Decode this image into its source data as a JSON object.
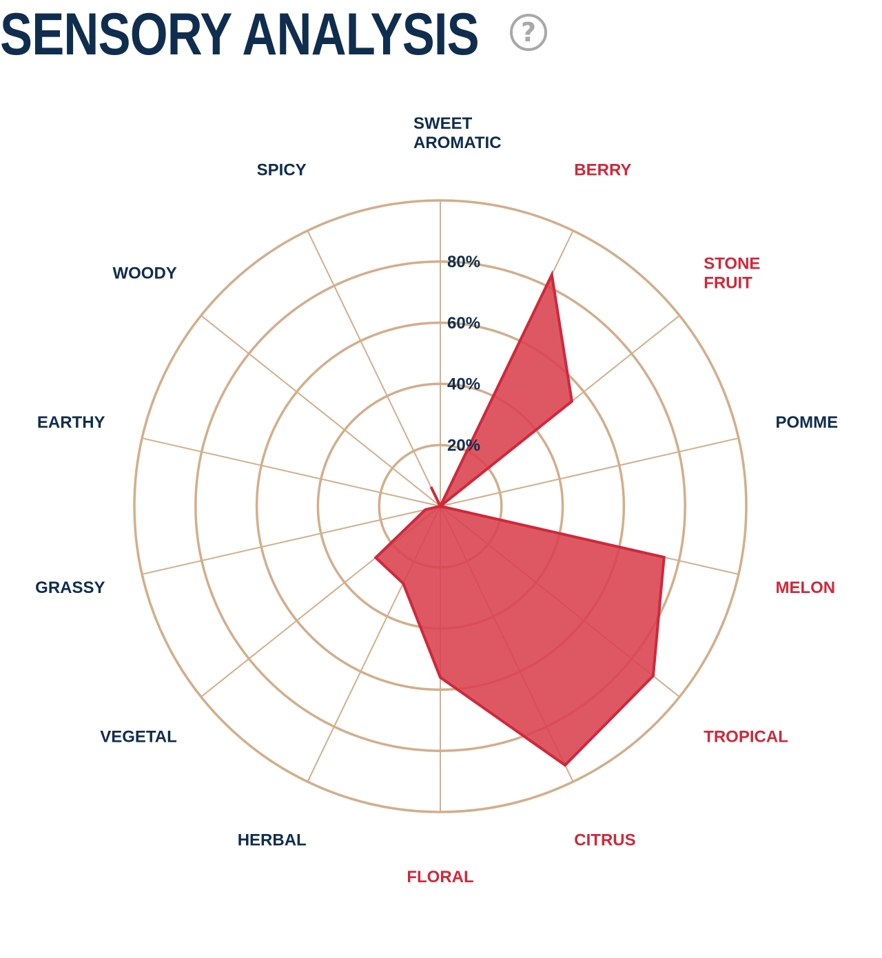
{
  "header": {
    "title": "SENSORY ANALYSIS",
    "help_icon": "question-circle-icon"
  },
  "colors": {
    "title": "#0f2d4e",
    "label_default": "#0f2d4e",
    "label_highlight": "#d0283a",
    "grid": "#d3ae8a",
    "fill": "#d9414f",
    "stroke": "#d0283a",
    "help_icon": "#a8a8a8"
  },
  "chart_data": {
    "type": "radar",
    "title": "",
    "rmax": 100,
    "ticks": [
      20,
      40,
      60,
      80,
      100
    ],
    "tick_labels": [
      "20%",
      "40%",
      "60%",
      "80%"
    ],
    "grid": true,
    "categories": [
      {
        "label": [
          "SWEET",
          "AROMATIC"
        ],
        "value": 0,
        "highlight": false
      },
      {
        "label": [
          "BERRY"
        ],
        "value": 84,
        "highlight": true
      },
      {
        "label": [
          "STONE",
          "FRUIT"
        ],
        "value": 55,
        "highlight": true
      },
      {
        "label": [
          "POMME"
        ],
        "value": 0,
        "highlight": false
      },
      {
        "label": [
          "MELON"
        ],
        "value": 75,
        "highlight": true
      },
      {
        "label": [
          "TROPICAL"
        ],
        "value": 89,
        "highlight": true
      },
      {
        "label": [
          "CITRUS"
        ],
        "value": 94,
        "highlight": true
      },
      {
        "label": [
          "FLORAL"
        ],
        "value": 56,
        "highlight": true
      },
      {
        "label": [
          "HERBAL"
        ],
        "value": 28,
        "highlight": false
      },
      {
        "label": [
          "VEGETAL"
        ],
        "value": 27,
        "highlight": false
      },
      {
        "label": [
          "GRASSY"
        ],
        "value": 5,
        "highlight": false
      },
      {
        "label": [
          "EARTHY"
        ],
        "value": 0,
        "highlight": false
      },
      {
        "label": [
          "WOODY"
        ],
        "value": 0,
        "highlight": false
      },
      {
        "label": [
          "SPICY"
        ],
        "value": 7,
        "highlight": false
      }
    ]
  }
}
